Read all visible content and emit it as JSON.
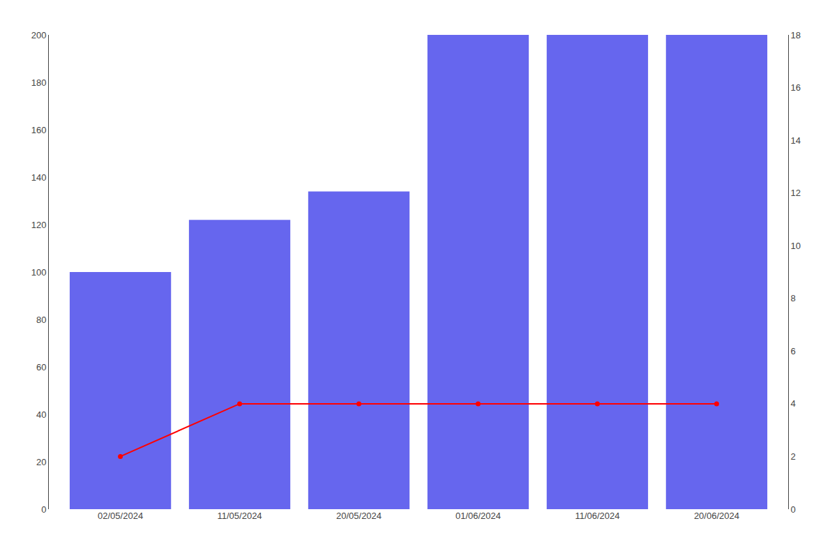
{
  "chart_data": {
    "type": "bar",
    "categories": [
      "02/05/2024",
      "11/05/2024",
      "20/05/2024",
      "01/06/2024",
      "11/06/2024",
      "20/06/2024"
    ],
    "series": [
      {
        "type": "bar",
        "color": "#6666ee",
        "values": [
          100,
          122,
          134,
          200,
          200,
          200
        ]
      },
      {
        "type": "line",
        "color": "#ff0000",
        "marker": "circle",
        "axis": "y2",
        "values": [
          2.0,
          4.0,
          4.0,
          4.0,
          4.0,
          4.0
        ]
      }
    ],
    "ylim": [
      0,
      200
    ],
    "yticks": [
      0,
      20,
      40,
      60,
      80,
      100,
      120,
      140,
      160,
      180,
      200
    ],
    "y2lim": [
      0,
      18
    ],
    "y2ticks": [
      0,
      2,
      4,
      6,
      8,
      10,
      12,
      14,
      16,
      18
    ],
    "grid": false
  }
}
